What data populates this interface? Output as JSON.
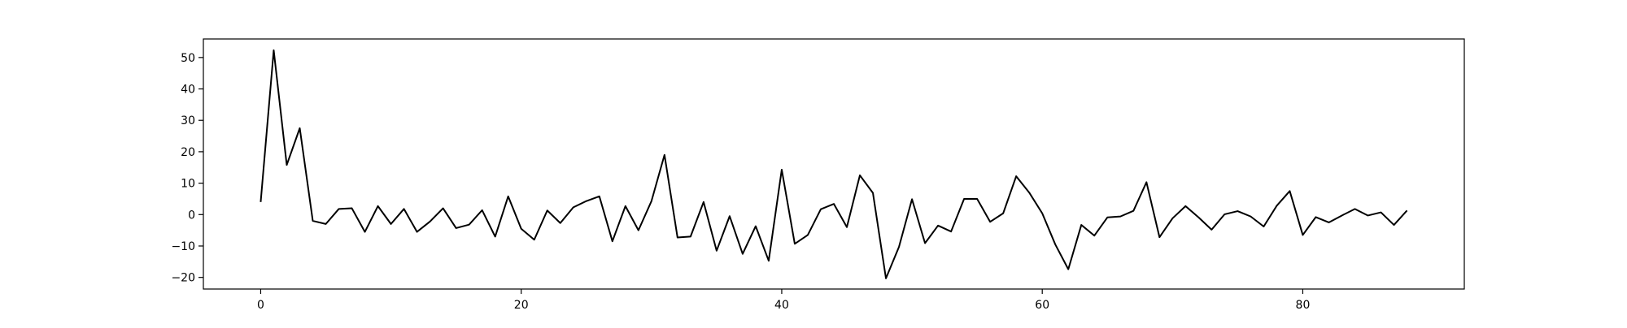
{
  "chart_data": {
    "type": "line",
    "title": "",
    "xlabel": "",
    "ylabel": "",
    "xlim": [
      -4.4,
      92.4
    ],
    "ylim": [
      -23.7,
      55.9
    ],
    "xticks": [
      0,
      20,
      40,
      60,
      80
    ],
    "yticks": [
      -20,
      -10,
      0,
      10,
      20,
      30,
      40,
      50
    ],
    "xtick_labels": [
      "0",
      "20",
      "40",
      "60",
      "80"
    ],
    "ytick_labels": [
      "−20",
      "−10",
      "0",
      "10",
      "20",
      "30",
      "40",
      "50"
    ],
    "grid": false,
    "legend": "none",
    "series": [
      {
        "color": "#000000",
        "x": [
          0,
          1,
          2,
          3,
          4,
          5,
          6,
          7,
          8,
          9,
          10,
          11,
          12,
          13,
          14,
          15,
          16,
          17,
          18,
          19,
          20,
          21,
          22,
          23,
          24,
          25,
          26,
          27,
          28,
          29,
          30,
          31,
          32,
          33,
          34,
          35,
          36,
          37,
          38,
          39,
          40,
          41,
          42,
          43,
          44,
          45,
          46,
          47,
          48,
          49,
          50,
          51,
          52,
          53,
          54,
          55,
          56,
          57,
          58,
          59,
          60,
          61,
          62,
          63,
          64,
          65,
          66,
          67,
          68,
          69,
          70,
          71,
          72,
          73,
          74,
          75,
          76,
          77,
          78,
          79,
          80,
          81,
          82,
          83,
          84,
          85,
          86,
          87,
          88
        ],
        "values": [
          4,
          52.3,
          15.8,
          27.5,
          -2,
          -3,
          1.8,
          2,
          -5.5,
          2.7,
          -3,
          1.8,
          -5.5,
          -2.2,
          2,
          -4.3,
          -3.2,
          1.4,
          -7,
          5.8,
          -4.5,
          -8,
          1.3,
          -2.7,
          2.3,
          4.3,
          5.8,
          -8.5,
          2.7,
          -5,
          4.3,
          19,
          -7.3,
          -7,
          4,
          -11.5,
          -0.5,
          -12.5,
          -3.7,
          -14.7,
          14.3,
          -9.3,
          -6.5,
          1.7,
          3.4,
          -4,
          12.5,
          6.9,
          -20.3,
          -10.3,
          4.9,
          -9.1,
          -3.5,
          -5.4,
          5,
          5,
          -2.3,
          0.4,
          12.2,
          7,
          0.4,
          -9.5,
          -17.4,
          -3.3,
          -6.7,
          -0.9,
          -0.6,
          1.2,
          10.3,
          -7.2,
          -1.2,
          2.7,
          -0.9,
          -4.8,
          0.1,
          1.1,
          -0.6,
          -3.8,
          2.8,
          7.5,
          -6.5,
          -0.8,
          -2.5,
          -0.3,
          1.8,
          -0.3,
          0.7,
          -3.3,
          1.3
        ]
      }
    ]
  }
}
